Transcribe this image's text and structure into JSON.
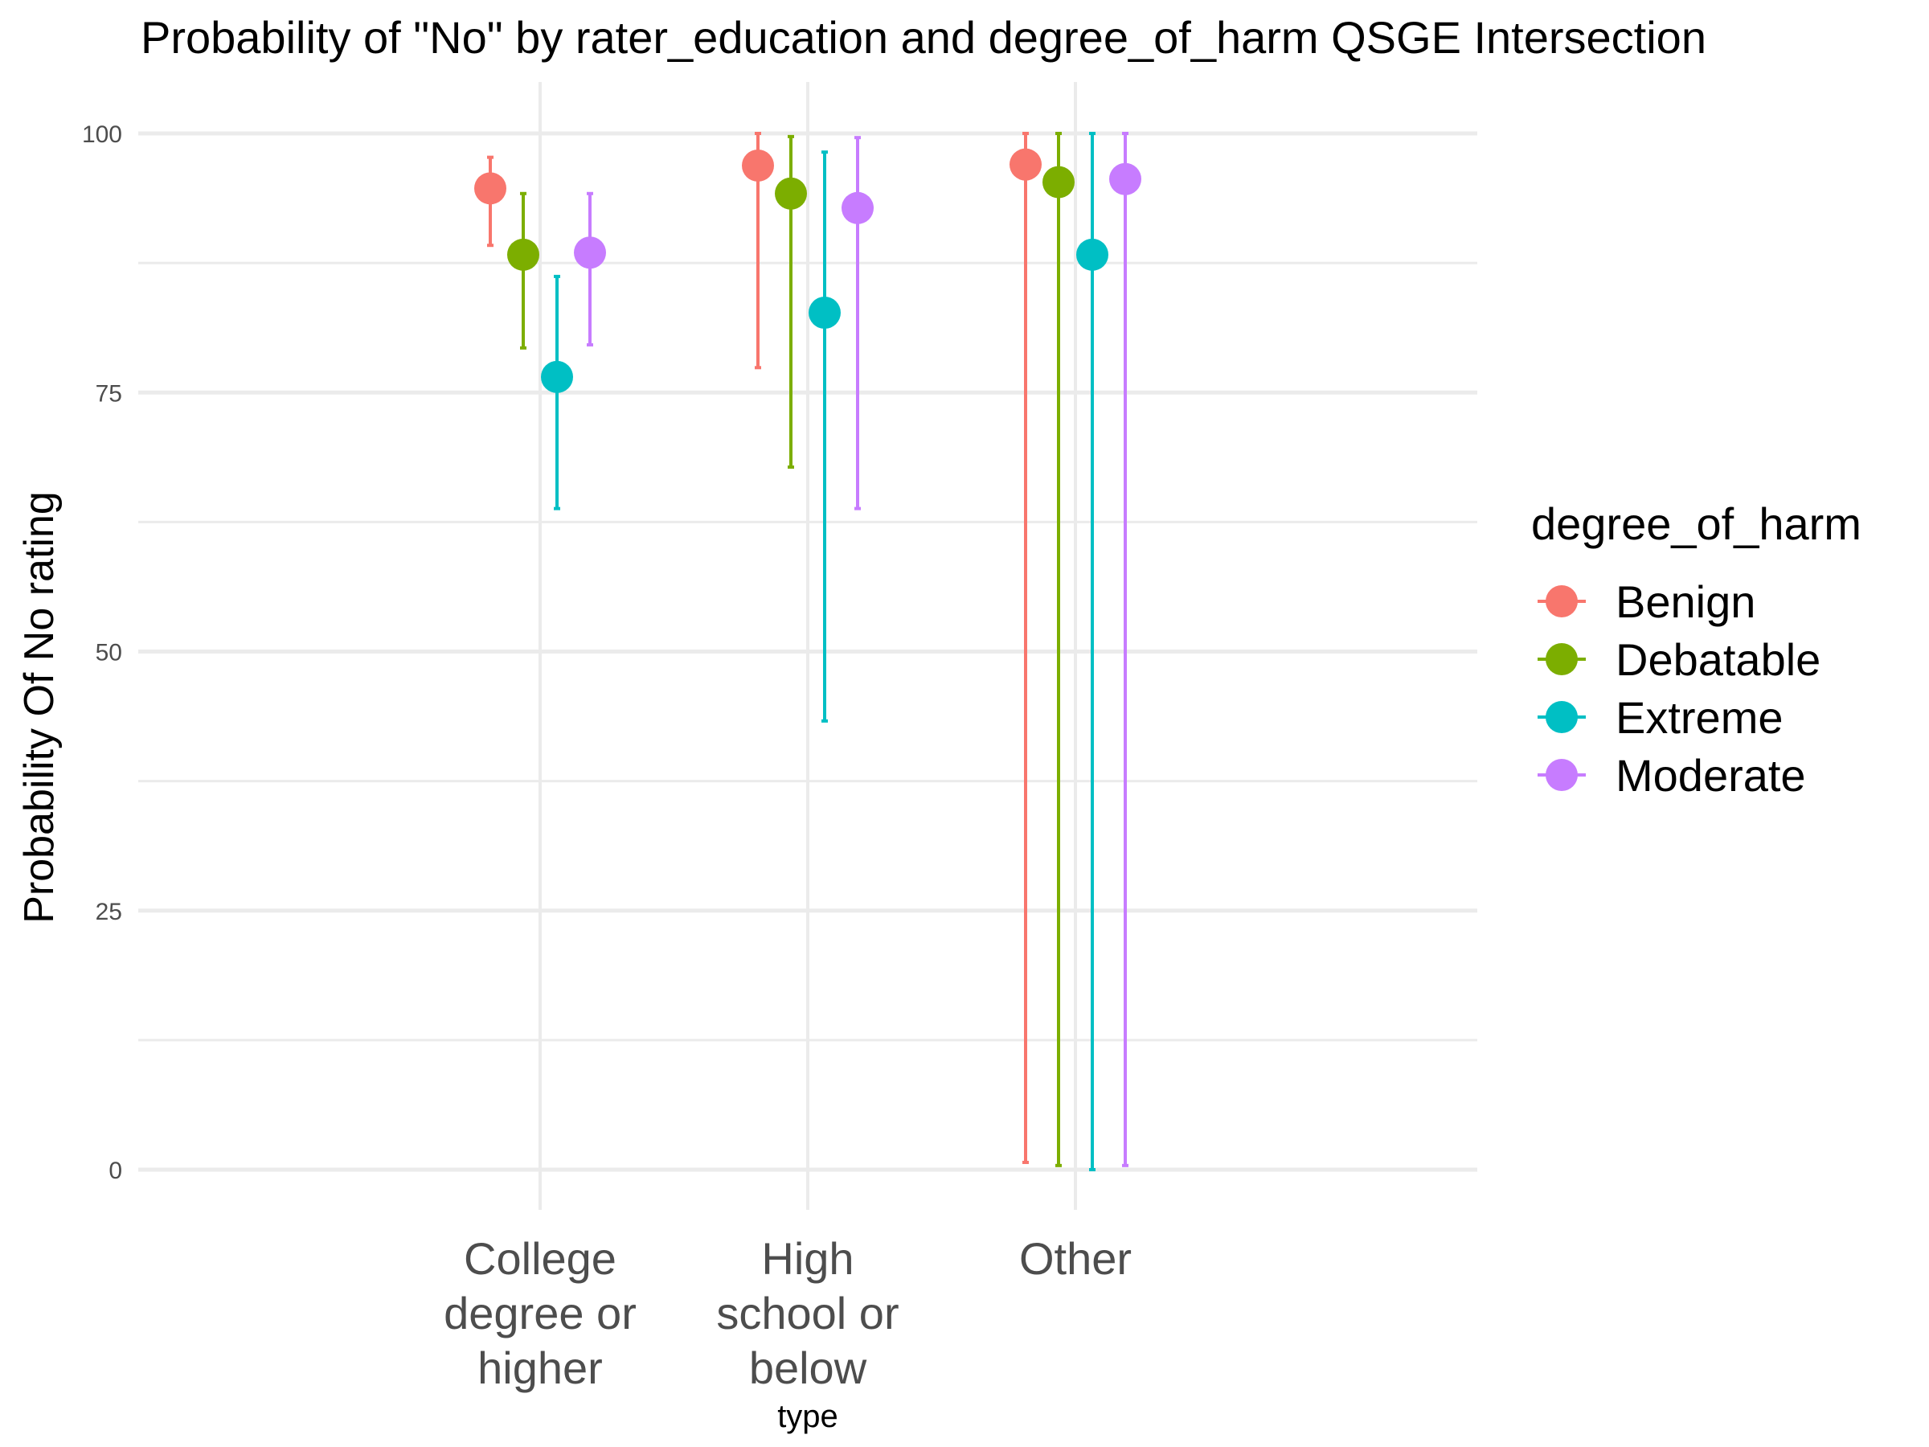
{
  "chart_data": {
    "type": "scatter",
    "title": "Probability of \"No\" by rater_education and  degree_of_harm  QSGE Intersection",
    "xlabel": "type",
    "ylabel": "Probability Of No rating",
    "ylim": [
      -5,
      104
    ],
    "yticks": [
      0,
      25,
      50,
      75,
      100
    ],
    "grid": true,
    "legend_position": "right",
    "legend_title": "degree_of_harm",
    "categories": [
      [
        "College",
        "degree or",
        "higher"
      ],
      [
        "High",
        "school or",
        "below"
      ],
      [
        "Other"
      ]
    ],
    "series": [
      {
        "name": "Benign",
        "color": "#F8766D",
        "values": [
          94.7,
          96.9,
          97.0
        ],
        "lower": [
          89.2,
          77.4,
          0.7
        ],
        "upper": [
          97.7,
          100.0,
          100.0
        ]
      },
      {
        "name": "Debatable",
        "color": "#7CAE00",
        "values": [
          88.3,
          94.2,
          95.3
        ],
        "lower": [
          79.3,
          67.8,
          0.4
        ],
        "upper": [
          94.2,
          99.7,
          100.0
        ]
      },
      {
        "name": "Extreme",
        "color": "#00BFC4",
        "values": [
          76.5,
          82.7,
          88.3
        ],
        "lower": [
          63.8,
          43.3,
          0.0
        ],
        "upper": [
          86.2,
          98.2,
          100.0
        ]
      },
      {
        "name": "Moderate",
        "color": "#C77CFF",
        "values": [
          88.5,
          92.8,
          95.6
        ],
        "lower": [
          79.6,
          63.8,
          0.4
        ],
        "upper": [
          94.2,
          99.6,
          100.0
        ]
      }
    ]
  }
}
